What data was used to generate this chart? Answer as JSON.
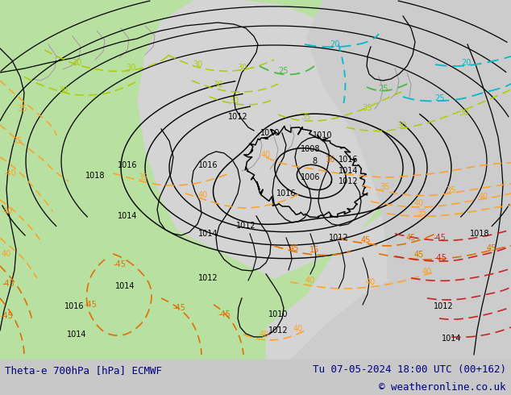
{
  "title_left": "Theta-e 700hPa [hPa] ECMWF",
  "title_right": "Tu 07-05-2024 18:00 UTC (00+162)",
  "copyright": "© weatheronline.co.uk",
  "text_color": "#000080",
  "label_fontsize": 9,
  "fig_width": 6.34,
  "fig_height": 4.9,
  "dpi": 100,
  "land_color": "#b8e0a0",
  "ocean_color": "#d4d4d4",
  "bottom_color": "#c8c8c8",
  "black": "#000000",
  "orange": "#ffa020",
  "orange_dark": "#e07000",
  "yellow_green": "#aacc00",
  "green_dash": "#44bb44",
  "cyan_dash": "#00bbcc",
  "red_dash": "#cc2222",
  "gray_coast": "#999999",
  "purple_coast": "#aa88aa"
}
